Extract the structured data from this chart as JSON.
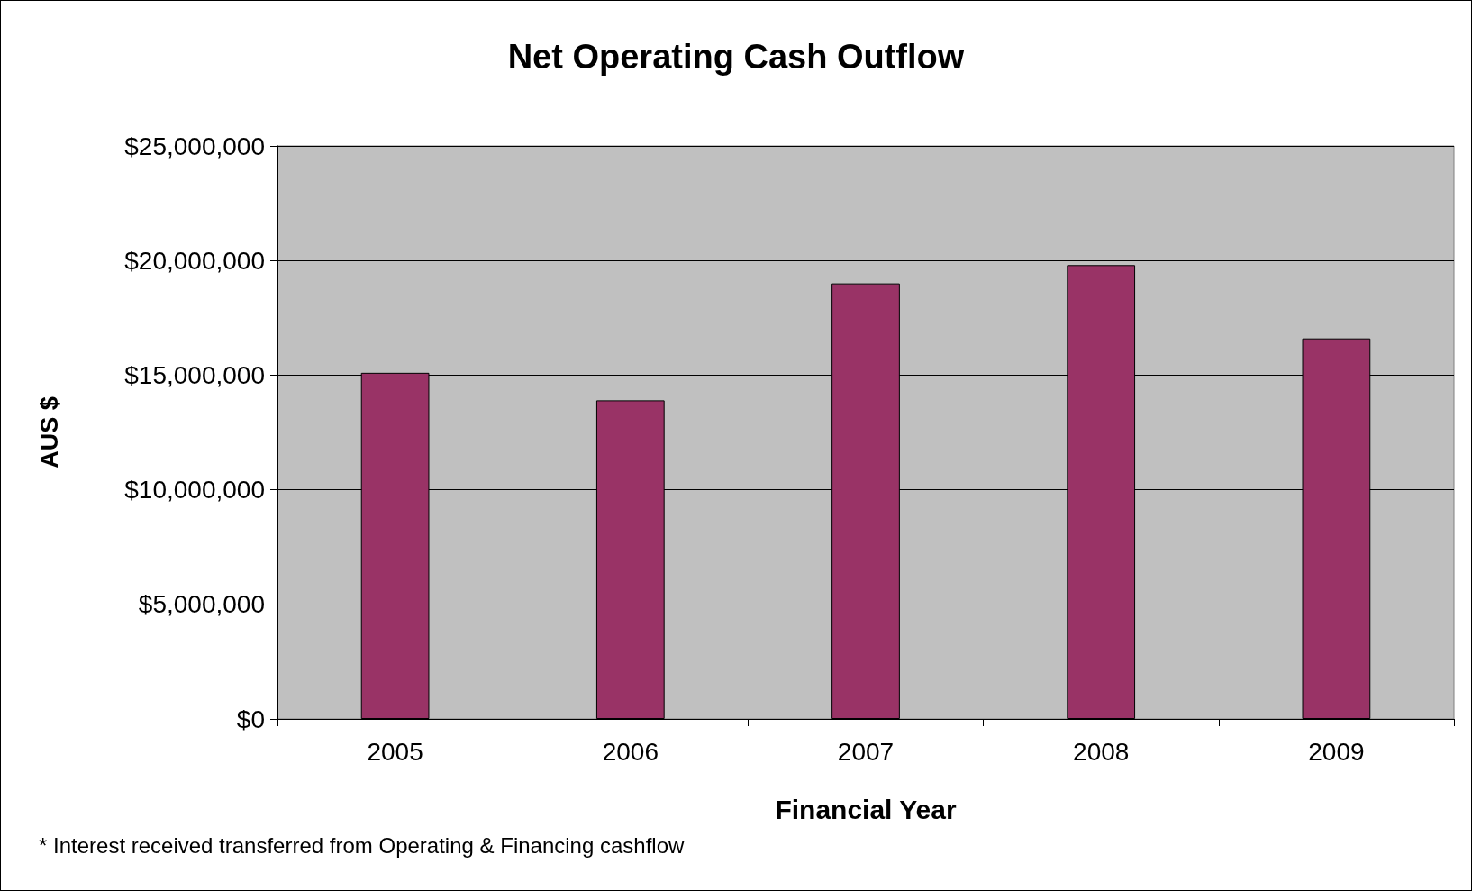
{
  "chart_data": {
    "type": "bar",
    "title": "Net Operating Cash Outflow",
    "xlabel": "Financial Year",
    "ylabel": "AUS $",
    "categories": [
      "2005",
      "2006",
      "2007",
      "2008",
      "2009"
    ],
    "values": [
      15100000,
      13900000,
      19000000,
      19800000,
      16600000
    ],
    "color": "#993366",
    "ylim": [
      0,
      25000000
    ],
    "yticks": [
      {
        "value": 0,
        "label": "$0"
      },
      {
        "value": 5000000,
        "label": "$5,000,000"
      },
      {
        "value": 10000000,
        "label": "$10,000,000"
      },
      {
        "value": 15000000,
        "label": "$15,000,000"
      },
      {
        "value": 20000000,
        "label": "$20,000,000"
      },
      {
        "value": 25000000,
        "label": "$25,000,000"
      }
    ],
    "grid": "y",
    "annotations": [
      "* Interest received transferred from Operating & Financing cashflow"
    ]
  }
}
